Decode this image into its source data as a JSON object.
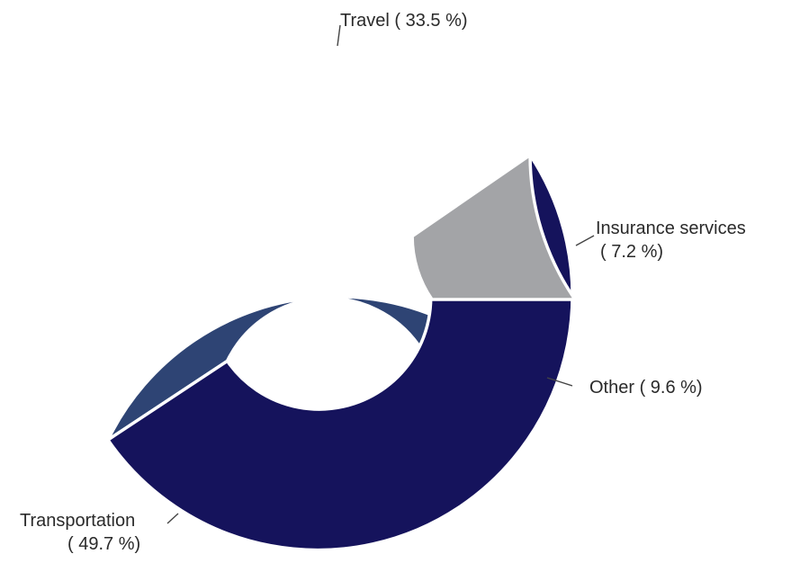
{
  "chart_data": {
    "type": "pie",
    "variant": "donut",
    "start_angle_deg": 0,
    "direction": "counterclockwise",
    "slices": [
      {
        "id": "insurance",
        "category": "Insurance services",
        "value": 7.2,
        "label_line1": "Insurance services",
        "label_line2": "( 7.2 %)",
        "color": "#4a6baa"
      },
      {
        "id": "travel",
        "category": "Travel",
        "value": 33.5,
        "label_line1": "Travel ( 33.5 %)",
        "label_line2": "",
        "color": "#2e4474"
      },
      {
        "id": "transportation",
        "category": "Transportation",
        "value": 49.7,
        "label_line1": "Transportation",
        "label_line2": "( 49.7 %)",
        "color": "#15135c"
      },
      {
        "id": "other",
        "category": "Other",
        "value": 9.6,
        "label_line1": "Other ( 9.6 %)",
        "label_line2": "",
        "color": "#a3a4a7"
      }
    ]
  }
}
